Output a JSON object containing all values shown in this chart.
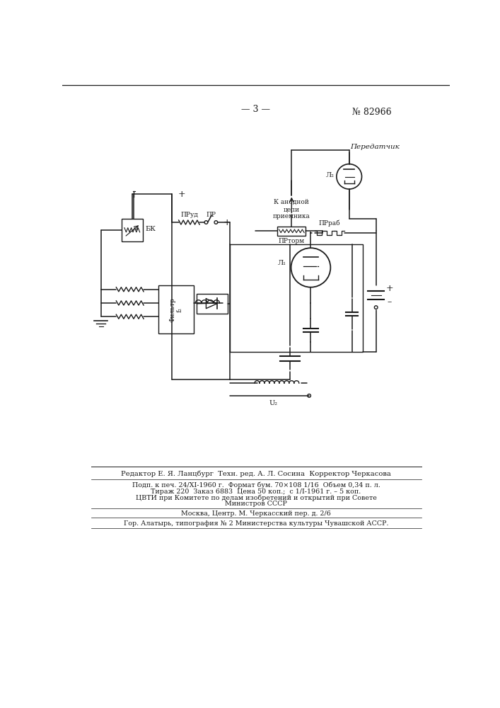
{
  "page_number": "— 3 —",
  "patent_number": "№ 82966",
  "background_color": "#ffffff",
  "line_color": "#1a1a1a",
  "footer_line1": "Редактор Е. Я. Ланцбург  Техн. ред. А. Л. Сосина  Корректор Черкасова",
  "footer_line2": "Подп. к печ. 24/XI-1960 г.  Формат бум. 70×108 1/16  Объем 0,34 п. л.",
  "footer_line3": "Тираж 220  Заказ 6883  Цена 50 коп.;  с 1/I-1961 г. – 5 коп.",
  "footer_line4": "ЦВТИ при Комитете по делам изобретений и открытий при Совете",
  "footer_line5": "Министров СССР",
  "footer_line6": "Москва, Центр. М. Черкасский пер. д. 2/6",
  "footer_line7": "Гор. Алатырь, типография № 2 Министерства культуры Чувашской АССР.",
  "lbl_peredatchik": "Передатчик",
  "lbl_l2": "Л₂",
  "lbl_k_anod": "К анодной\nцепи\nприемника",
  "lbl_pr_torm": "ПРторм",
  "lbl_pr_ud": "ПРуд",
  "lbl_pr": "ПР",
  "lbl_bk": "БК",
  "lbl_l1": "Л₁",
  "lbl_filtr": "Фильтр\nf₂",
  "lbl_pr_rab": "ПРраб",
  "lbl_u2": "U₂"
}
